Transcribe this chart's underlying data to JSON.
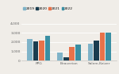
{
  "years": [
    "2019",
    "2020",
    "2021",
    "2022"
  ],
  "colors": [
    "#7fb3c8",
    "#1a3d4f",
    "#e8724a",
    "#3a8fa3"
  ],
  "districts": [
    "PPG",
    "Beaverton",
    "Salem-Keizer"
  ],
  "values": {
    "PPG": [
      2300,
      2100,
      2150,
      2650
    ],
    "Beaverton": [
      900,
      350,
      1500,
      1700
    ],
    "Salem-Keizer": [
      1800,
      2200,
      3000,
      3050
    ]
  },
  "ylim": [
    0,
    4300
  ],
  "yticks": [
    0,
    1000,
    2000,
    3000,
    4000
  ],
  "ytick_labels": [
    "0",
    "1,000",
    "2,000",
    "3,000",
    "4,000"
  ],
  "background_color": "#f0ede8",
  "bar_width": 0.055,
  "title_fontsize": 4.2,
  "legend_fontsize": 3.2,
  "tick_fontsize": 3.2
}
